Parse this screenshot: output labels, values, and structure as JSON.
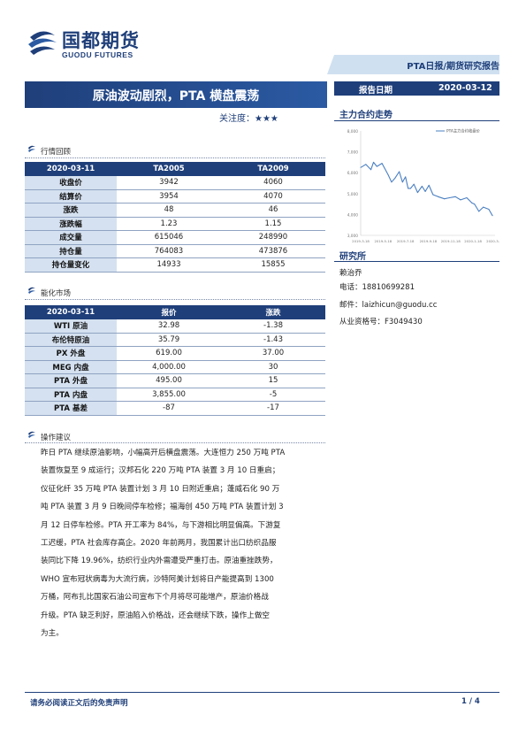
{
  "header": {
    "company_cn": "国都期货",
    "company_en": "GUODU FUTURES",
    "report_type": "PTA日报/期货研究报告"
  },
  "title": {
    "main": "原油波动剧烈，PTA 横盘震荡",
    "attention_label": "关注度：",
    "attention_stars": "★★★"
  },
  "report_date": {
    "label": "报告日期",
    "value": "2020-03-12"
  },
  "market_review": {
    "heading": "行情回顾",
    "columns": [
      "2020-03-11",
      "TA2005",
      "TA2009"
    ],
    "rows": [
      [
        "收盘价",
        "3942",
        "4060"
      ],
      [
        "结算价",
        "3954",
        "4070"
      ],
      [
        "涨跌",
        "48",
        "46"
      ],
      [
        "涨跌幅",
        "1.23",
        "1.15"
      ],
      [
        "成交量",
        "615046",
        "248990"
      ],
      [
        "持仓量",
        "764083",
        "473876"
      ],
      [
        "持仓量变化",
        "14933",
        "15855"
      ]
    ]
  },
  "energy_market": {
    "heading": "能化市场",
    "columns": [
      "2020-03-11",
      "报价",
      "涨跌"
    ],
    "rows": [
      [
        "WTI 原油",
        "32.98",
        "-1.38"
      ],
      [
        "布伦特原油",
        "35.79",
        "-1.43"
      ],
      [
        "PX 外盘",
        "619.00",
        "37.00"
      ],
      [
        "MEG 内盘",
        "4,000.00",
        "30"
      ],
      [
        "PTA 外盘",
        "495.00",
        "15"
      ],
      [
        "PTA 内盘",
        "3,855.00",
        "-5"
      ],
      [
        "PTA 基差",
        "-87",
        "-17"
      ]
    ]
  },
  "advice": {
    "heading": "操作建议",
    "lines": [
      "昨日 PTA 继续原油影响，小幅高开后横盘震荡。大连恒力 250 万吨 PTA",
      "装置恢复至 9 成运行；汉邦石化 220 万吨 PTA 装置 3 月 10 日重启；",
      "仪征化纤 35 万吨 PTA 装置计划 3 月 10 日附近重启；蓬威石化 90 万",
      "吨 PTA 装置 3 月 9 日晚间停车检修；福海创 450 万吨 PTA 装置计划 3",
      "月 12 日停车检修。PTA 开工率为 84%，与下游相比明显偏高。下游复",
      "工迟缓，PTA 社会库存高企。2020 年前两月，我国累计出口纺织品服",
      "装同比下降 19.96%，纺织行业内外需遭受严重打击。原油重挫跌势，",
      "WHO 宣布冠状病毒为大流行病，沙特阿美计划将日产能提高到 1300",
      "万桶，阿布扎比国家石油公司宣布下个月将尽可能增产，原油价格战",
      "升级。PTA 缺乏利好，原油陷入价格战，还会继续下跌，操作上做空",
      "为主。"
    ]
  },
  "main_contract": {
    "heading": "主力合约走势",
    "chart_data": {
      "type": "line",
      "title": "",
      "legend": "PTA主力合约收盘价",
      "legend_position": "top-right",
      "ylim": [
        3000,
        8000
      ],
      "yticks": [
        "8,000",
        "7,000",
        "6,000",
        "5,000",
        "4,000",
        "3,000"
      ],
      "xticks": [
        "2019-3-18",
        "2019-5-18",
        "2019-7-18",
        "2019-9-18",
        "2019-11-18",
        "2020-1-18",
        "2020-3-18"
      ],
      "x": [
        "2019-03-18",
        "2019-04-01",
        "2019-04-15",
        "2019-04-22",
        "2019-05-01",
        "2019-05-15",
        "2019-06-01",
        "2019-06-10",
        "2019-06-20",
        "2019-07-01",
        "2019-07-10",
        "2019-07-18",
        "2019-07-25",
        "2019-08-01",
        "2019-08-10",
        "2019-08-20",
        "2019-09-01",
        "2019-09-10",
        "2019-09-20",
        "2019-10-01",
        "2019-10-15",
        "2019-11-01",
        "2019-11-15",
        "2019-12-01",
        "2019-12-15",
        "2020-01-01",
        "2020-01-15",
        "2020-01-22",
        "2020-02-03",
        "2020-02-15",
        "2020-03-01",
        "2020-03-11"
      ],
      "values": [
        6250,
        6400,
        6150,
        6500,
        6300,
        6450,
        5900,
        5550,
        5750,
        6050,
        5550,
        5800,
        5250,
        5250,
        5450,
        5050,
        5350,
        5100,
        5400,
        4950,
        4850,
        4750,
        4800,
        4850,
        4700,
        4800,
        4550,
        4500,
        4150,
        4350,
        4250,
        3942
      ]
    }
  },
  "research": {
    "heading": "研究所",
    "analyst": "赖治乔",
    "phone": "电话：18810699281",
    "email": "邮件：laizhicun@guodu.cc",
    "license": "从业资格号：F3049430"
  },
  "footer": {
    "disclaimer": "请务必阅读正文后的免责声明",
    "page": "1 / 4"
  },
  "colors": {
    "brand": "#1f3f7a",
    "label_bg": "#d5e1f0",
    "line": "#4a7fc1"
  }
}
